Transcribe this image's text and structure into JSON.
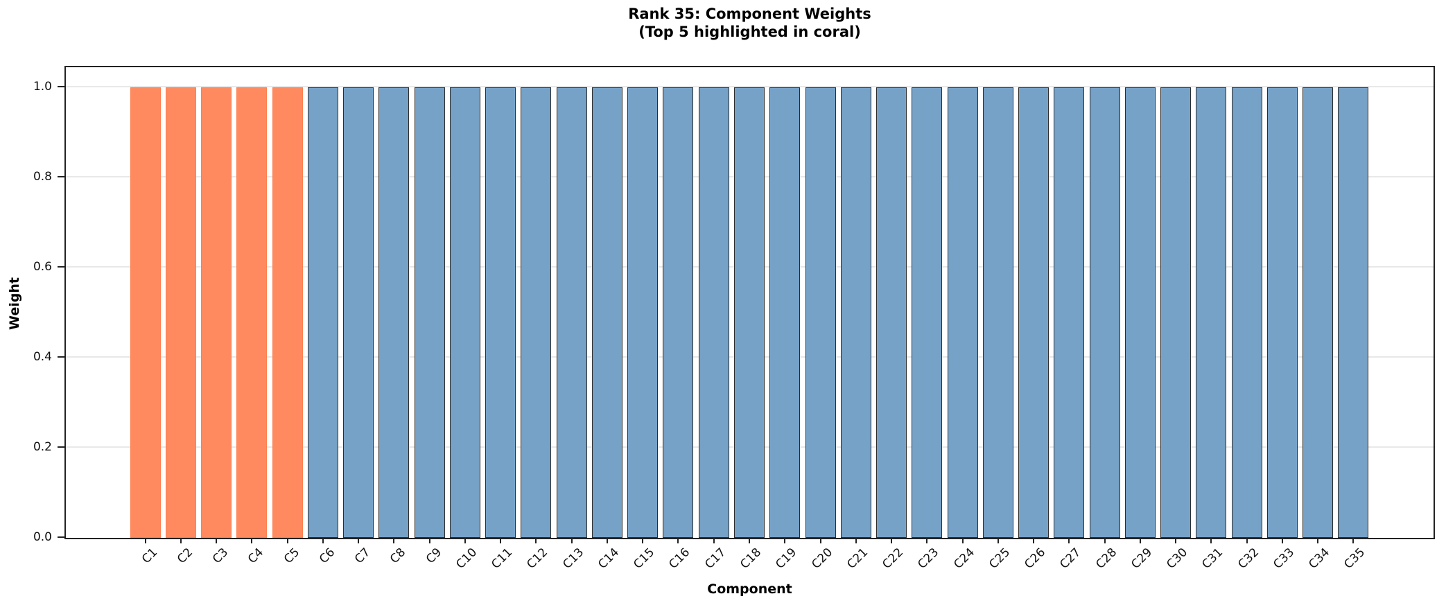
{
  "figure": {
    "title_line1": "Rank 35: Component Weights",
    "title_line2": "(Top 5 highlighted in coral)",
    "xlabel": "Component",
    "ylabel": "Weight"
  },
  "chart_data": {
    "type": "bar",
    "title": "Rank 35: Component Weights\n(Top 5 highlighted in coral)",
    "xlabel": "Component",
    "ylabel": "Weight",
    "categories": [
      "C1",
      "C2",
      "C3",
      "C4",
      "C5",
      "C6",
      "C7",
      "C8",
      "C9",
      "C10",
      "C11",
      "C12",
      "C13",
      "C14",
      "C15",
      "C16",
      "C17",
      "C18",
      "C19",
      "C20",
      "C21",
      "C22",
      "C23",
      "C24",
      "C25",
      "C26",
      "C27",
      "C28",
      "C29",
      "C30",
      "C31",
      "C32",
      "C33",
      "C34",
      "C35"
    ],
    "values": [
      1.0,
      1.0,
      1.0,
      1.0,
      1.0,
      1.0,
      1.0,
      1.0,
      1.0,
      1.0,
      1.0,
      1.0,
      1.0,
      1.0,
      1.0,
      1.0,
      1.0,
      1.0,
      1.0,
      1.0,
      1.0,
      1.0,
      1.0,
      1.0,
      1.0,
      1.0,
      1.0,
      1.0,
      1.0,
      1.0,
      1.0,
      1.0,
      1.0,
      1.0,
      1.0
    ],
    "highlight_count": 5,
    "colors": {
      "highlight_fill": "#FF8A5F",
      "highlight_edge": "#FF7F50",
      "normal_fill": "#77A2C8",
      "normal_edge": "#2D2D2D",
      "grid": "#E8E8E8",
      "spine": "#222222"
    },
    "ylim": [
      0,
      1.048
    ],
    "yticks": [
      "0.0",
      "0.2",
      "0.4",
      "0.6",
      "0.8",
      "1.0"
    ],
    "ytick_values": [
      0.0,
      0.2,
      0.4,
      0.6,
      0.8,
      1.0
    ],
    "grid": true,
    "grid_axis": "y",
    "legend": null
  }
}
